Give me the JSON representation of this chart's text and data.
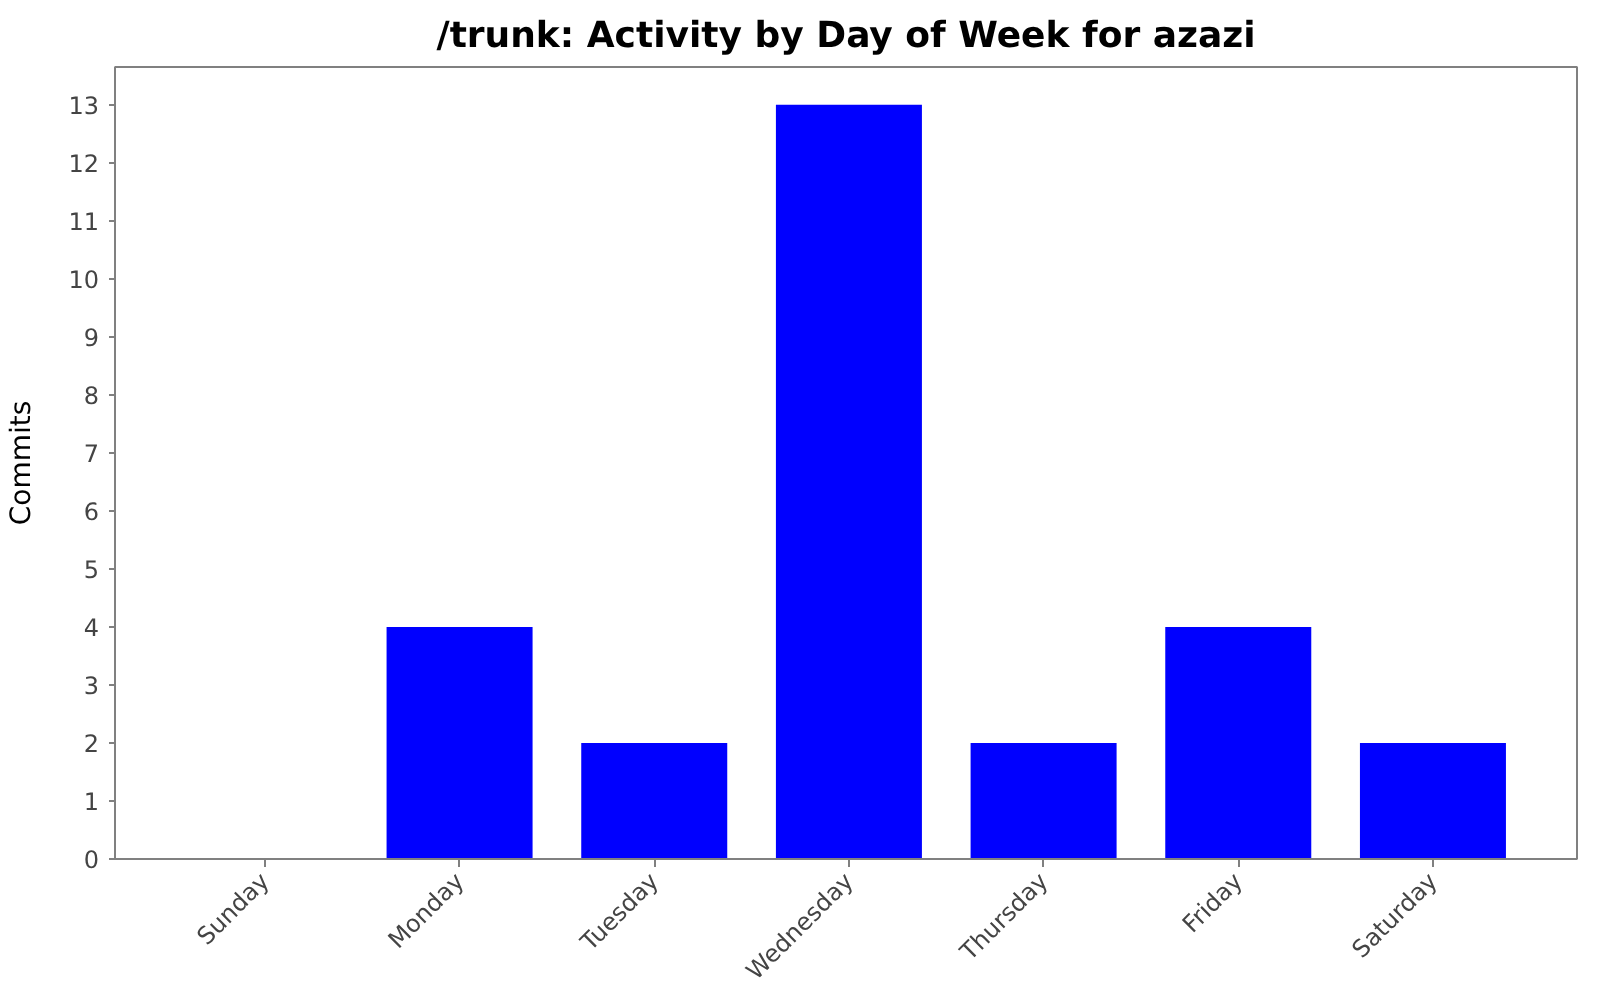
{
  "chart_data": {
    "type": "bar",
    "title": "/trunk: Activity by Day of Week for azazi",
    "ylabel": "Commits",
    "categories": [
      "Sunday",
      "Monday",
      "Tuesday",
      "Wednesday",
      "Thursday",
      "Friday",
      "Saturday"
    ],
    "values": [
      0,
      4,
      2,
      13,
      2,
      4,
      2
    ],
    "color": "#0000ff",
    "ylim": [
      0,
      13.65
    ],
    "yticks": [
      0,
      1,
      2,
      3,
      4,
      5,
      6,
      7,
      8,
      9,
      10,
      11,
      12,
      13
    ]
  }
}
